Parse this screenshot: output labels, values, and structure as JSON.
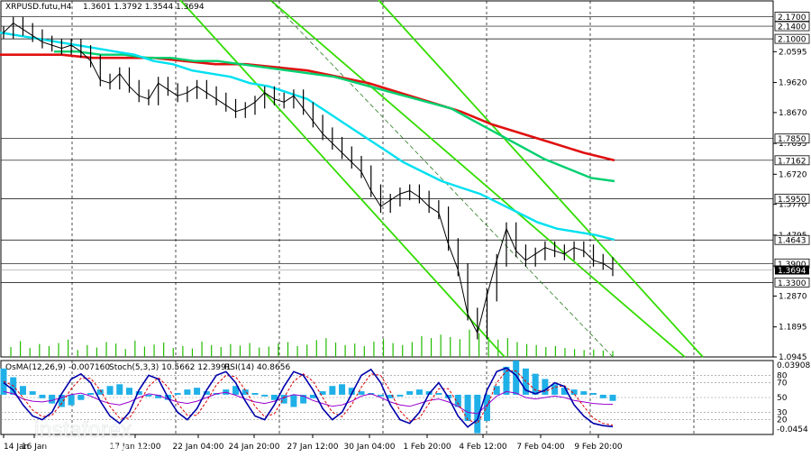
{
  "header": {
    "symbol": "XRPUSD.futu,H4",
    "ohlc": "1.3601 1.3792 1.3544 1.3694"
  },
  "indicator_header": {
    "osma": "OsMA(12,26,9) -0.007160",
    "stoch": "Stoch(5,3,3) 10.5662 12.3991",
    "rsi": "RSI(14) 40.8656"
  },
  "watermark": {
    "brand": "instaforex",
    "tagline": "Instant Forex Trading"
  },
  "colors": {
    "ma_fast": "#00e0f0",
    "ma_mid": "#00d070",
    "ma_slow": "#e01010",
    "channel": "#33dd00",
    "price": "#000000",
    "volume": "#22bb00",
    "osma": "#20b0e8",
    "stoch_main": "#0000aa",
    "stoch_signal": "#dd0000",
    "rsi": "#9900cc"
  },
  "chart_data": {
    "type": "line",
    "title": "XRPUSD.futu,H4",
    "timeframe": "H4",
    "ylim": [
      1.0945,
      2.22
    ],
    "y_ticks": [
      "2.0595",
      "1.9620",
      "1.8670",
      "1.7695",
      "1.6720",
      "1.5770",
      "1.4795",
      "1.3820",
      "1.2870",
      "1.1895",
      "1.0945"
    ],
    "x_ticks": [
      "14 Jan",
      "16 Jan",
      "17 Jan 12:00",
      "22 Jan 04:00",
      "24 Jan 20:00",
      "27 Jan 12:00",
      "30 Jan 04:00",
      "1 Feb 20:00",
      "4 Feb 12:00",
      "7 Feb 04:00",
      "9 Feb 20:00"
    ],
    "levels": [
      "2.1700",
      "2.1400",
      "2.1000",
      "1.7850",
      "1.7162",
      "1.5950",
      "1.4643",
      "1.3900",
      "1.3300"
    ],
    "current_price": "1.3694",
    "series": [
      {
        "name": "XRPUSD.futu",
        "values": [
          2.12,
          2.15,
          2.13,
          2.11,
          2.09,
          2.08,
          2.07,
          2.08,
          2.06,
          2.03,
          1.97,
          1.96,
          1.99,
          1.95,
          1.92,
          1.91,
          1.96,
          1.94,
          1.92,
          1.93,
          1.95,
          1.93,
          1.91,
          1.89,
          1.87,
          1.88,
          1.9,
          1.93,
          1.91,
          1.9,
          1.92,
          1.88,
          1.84,
          1.8,
          1.77,
          1.74,
          1.71,
          1.68,
          1.62,
          1.57,
          1.59,
          1.61,
          1.62,
          1.6,
          1.57,
          1.55,
          1.45,
          1.37,
          1.23,
          1.17,
          1.29,
          1.4,
          1.5,
          1.43,
          1.4,
          1.42,
          1.44,
          1.43,
          1.42,
          1.44,
          1.43,
          1.4,
          1.39,
          1.37
        ]
      },
      {
        "name": "MA fast",
        "values": [
          2.12,
          2.11,
          2.1,
          2.09,
          2.08,
          2.07,
          2.06,
          2.05,
          2.03,
          2.02,
          2.0,
          1.99,
          1.98,
          1.96,
          1.95,
          1.93,
          1.91,
          1.87,
          1.83,
          1.79,
          1.75,
          1.71,
          1.68,
          1.65,
          1.63,
          1.61,
          1.58,
          1.55,
          1.52,
          1.5,
          1.49,
          1.48,
          1.465
        ]
      },
      {
        "name": "MA mid",
        "values": [
          2.06,
          2.06,
          2.05,
          2.05,
          2.04,
          2.04,
          2.03,
          2.03,
          2.02,
          2.01,
          2.0,
          1.99,
          1.98,
          1.96,
          1.94,
          1.92,
          1.9,
          1.88,
          1.84,
          1.8,
          1.76,
          1.72,
          1.69,
          1.66,
          1.65
        ]
      },
      {
        "name": "MA slow",
        "values": [
          2.05,
          2.05,
          2.05,
          2.04,
          2.04,
          2.04,
          2.03,
          2.02,
          2.02,
          2.01,
          2.0,
          1.98,
          1.96,
          1.93,
          1.9,
          1.87,
          1.83,
          1.8,
          1.77,
          1.74,
          1.716
        ]
      }
    ],
    "volume": [
      20,
      32,
      18,
      26,
      22,
      28,
      35,
      14,
      24,
      19,
      30,
      27,
      16,
      33,
      21,
      25,
      29,
      18,
      22,
      17,
      31,
      24,
      20,
      26,
      23,
      28,
      19,
      21,
      27,
      30,
      22,
      25,
      34,
      38,
      29,
      24,
      27,
      22,
      31,
      36,
      28,
      24,
      30,
      42,
      38,
      45,
      40,
      36,
      55,
      48,
      40,
      35,
      38,
      30,
      26,
      24,
      20,
      22,
      18,
      16,
      14,
      15,
      13,
      12
    ],
    "osma": [
      0.03,
      0.02,
      0.01,
      0.004,
      -0.004,
      -0.01,
      -0.014,
      -0.012,
      -0.006,
      0.002,
      0.006,
      0.01,
      0.012,
      0.008,
      0.004,
      -0.002,
      -0.004,
      -0.006,
      0.002,
      0.006,
      0.008,
      0.004,
      0.002,
      0.006,
      0.01,
      0.006,
      0.002,
      -0.002,
      -0.006,
      -0.01,
      -0.014,
      -0.01,
      -0.004,
      0.004,
      0.01,
      0.012,
      0.008,
      0.004,
      0.002,
      -0.002,
      -0.004,
      -0.002,
      0.004,
      0.006,
      0.004,
      0.002,
      -0.004,
      -0.014,
      -0.03,
      -0.044,
      -0.03,
      0.01,
      0.032,
      0.039,
      0.03,
      0.024,
      0.018,
      0.012,
      0.008,
      0.006,
      0.004,
      0.002,
      -0.004,
      -0.007
    ],
    "osma_range": [
      "0.039083",
      "-0.0454"
    ],
    "stoch_levels": [
      80,
      70,
      50,
      30,
      20
    ],
    "stoch": {
      "main": [
        70,
        60,
        40,
        25,
        20,
        30,
        55,
        75,
        82,
        70,
        45,
        25,
        15,
        30,
        60,
        80,
        75,
        50,
        30,
        20,
        35,
        60,
        80,
        85,
        70,
        45,
        25,
        20,
        40,
        65,
        85,
        80,
        60,
        35,
        20,
        30,
        55,
        80,
        88,
        70,
        40,
        20,
        15,
        30,
        55,
        70,
        50,
        25,
        10,
        20,
        60,
        85,
        90,
        80,
        60,
        55,
        60,
        70,
        65,
        40,
        25,
        15,
        12,
        10.57
      ],
      "signal": [
        72,
        66,
        50,
        33,
        24,
        26,
        42,
        62,
        76,
        76,
        60,
        38,
        22,
        22,
        42,
        65,
        77,
        64,
        42,
        26,
        26,
        45,
        67,
        80,
        78,
        60,
        38,
        24,
        28,
        50,
        72,
        82,
        72,
        50,
        30,
        24,
        40,
        64,
        82,
        80,
        58,
        32,
        18,
        22,
        42,
        62,
        62,
        42,
        20,
        15,
        38,
        70,
        86,
        86,
        72,
        60,
        58,
        64,
        66,
        55,
        38,
        22,
        15,
        12.4
      ],
      "rsi": [
        58,
        55,
        48,
        45,
        44,
        46,
        50,
        54,
        56,
        52,
        46,
        42,
        40,
        44,
        50,
        55,
        53,
        48,
        44,
        42,
        45,
        50,
        55,
        57,
        53,
        48,
        44,
        42,
        45,
        50,
        54,
        52,
        46,
        42,
        38,
        40,
        45,
        52,
        55,
        50,
        44,
        40,
        38,
        42,
        46,
        48,
        44,
        38,
        30,
        28,
        40,
        52,
        58,
        56,
        50,
        48,
        50,
        52,
        50,
        46,
        44,
        42,
        41,
        40.87
      ]
    }
  }
}
